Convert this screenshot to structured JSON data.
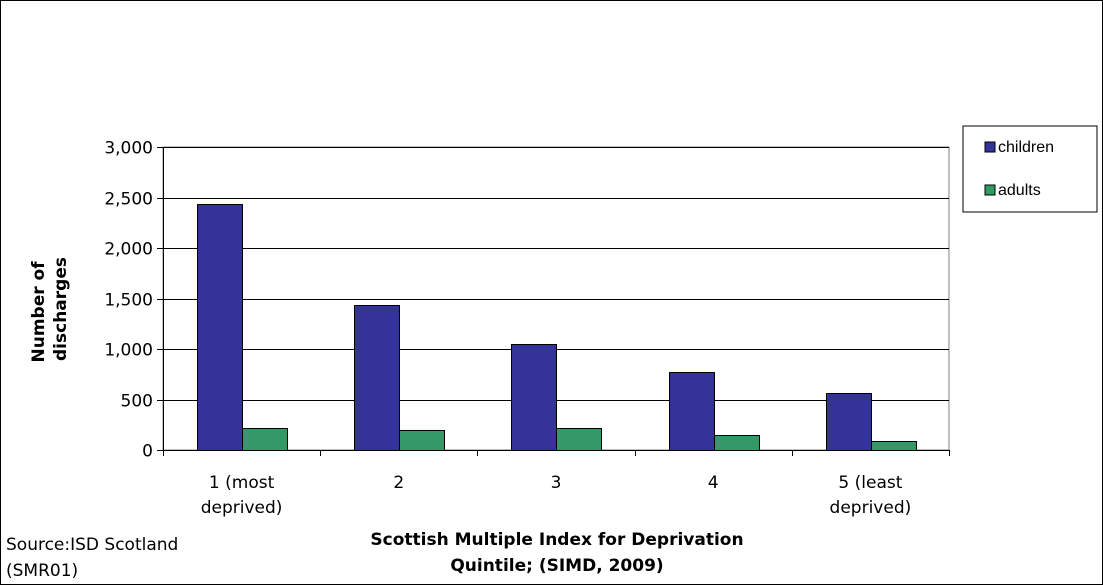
{
  "chart_data": {
    "type": "bar",
    "categories": [
      [
        "1 (most",
        "deprived)"
      ],
      [
        "2"
      ],
      [
        "3"
      ],
      [
        "4"
      ],
      [
        "5 (least",
        "deprived)"
      ]
    ],
    "series": [
      {
        "name": "children",
        "color": "#333399",
        "values": [
          2440,
          1440,
          1050,
          775,
          560
        ]
      },
      {
        "name": "adults",
        "color": "#339966",
        "values": [
          215,
          195,
          215,
          150,
          90
        ]
      }
    ],
    "ylim": [
      0,
      3000
    ],
    "yticks": [
      0,
      500,
      1000,
      1500,
      2000,
      2500,
      3000
    ],
    "ytick_labels": [
      "0",
      "500",
      "1,000",
      "1,500",
      "2,000",
      "2,500",
      "3,000"
    ],
    "ylabel_lines": [
      "Number of",
      "discharges"
    ],
    "xlabel_lines": [
      "Scottish Multiple Index for Deprivation",
      "Quintile; (SIMD, 2009)"
    ],
    "grid": true,
    "legend_position": "right"
  },
  "source_lines": [
    "Source:ISD Scotland",
    "(SMR01)"
  ]
}
